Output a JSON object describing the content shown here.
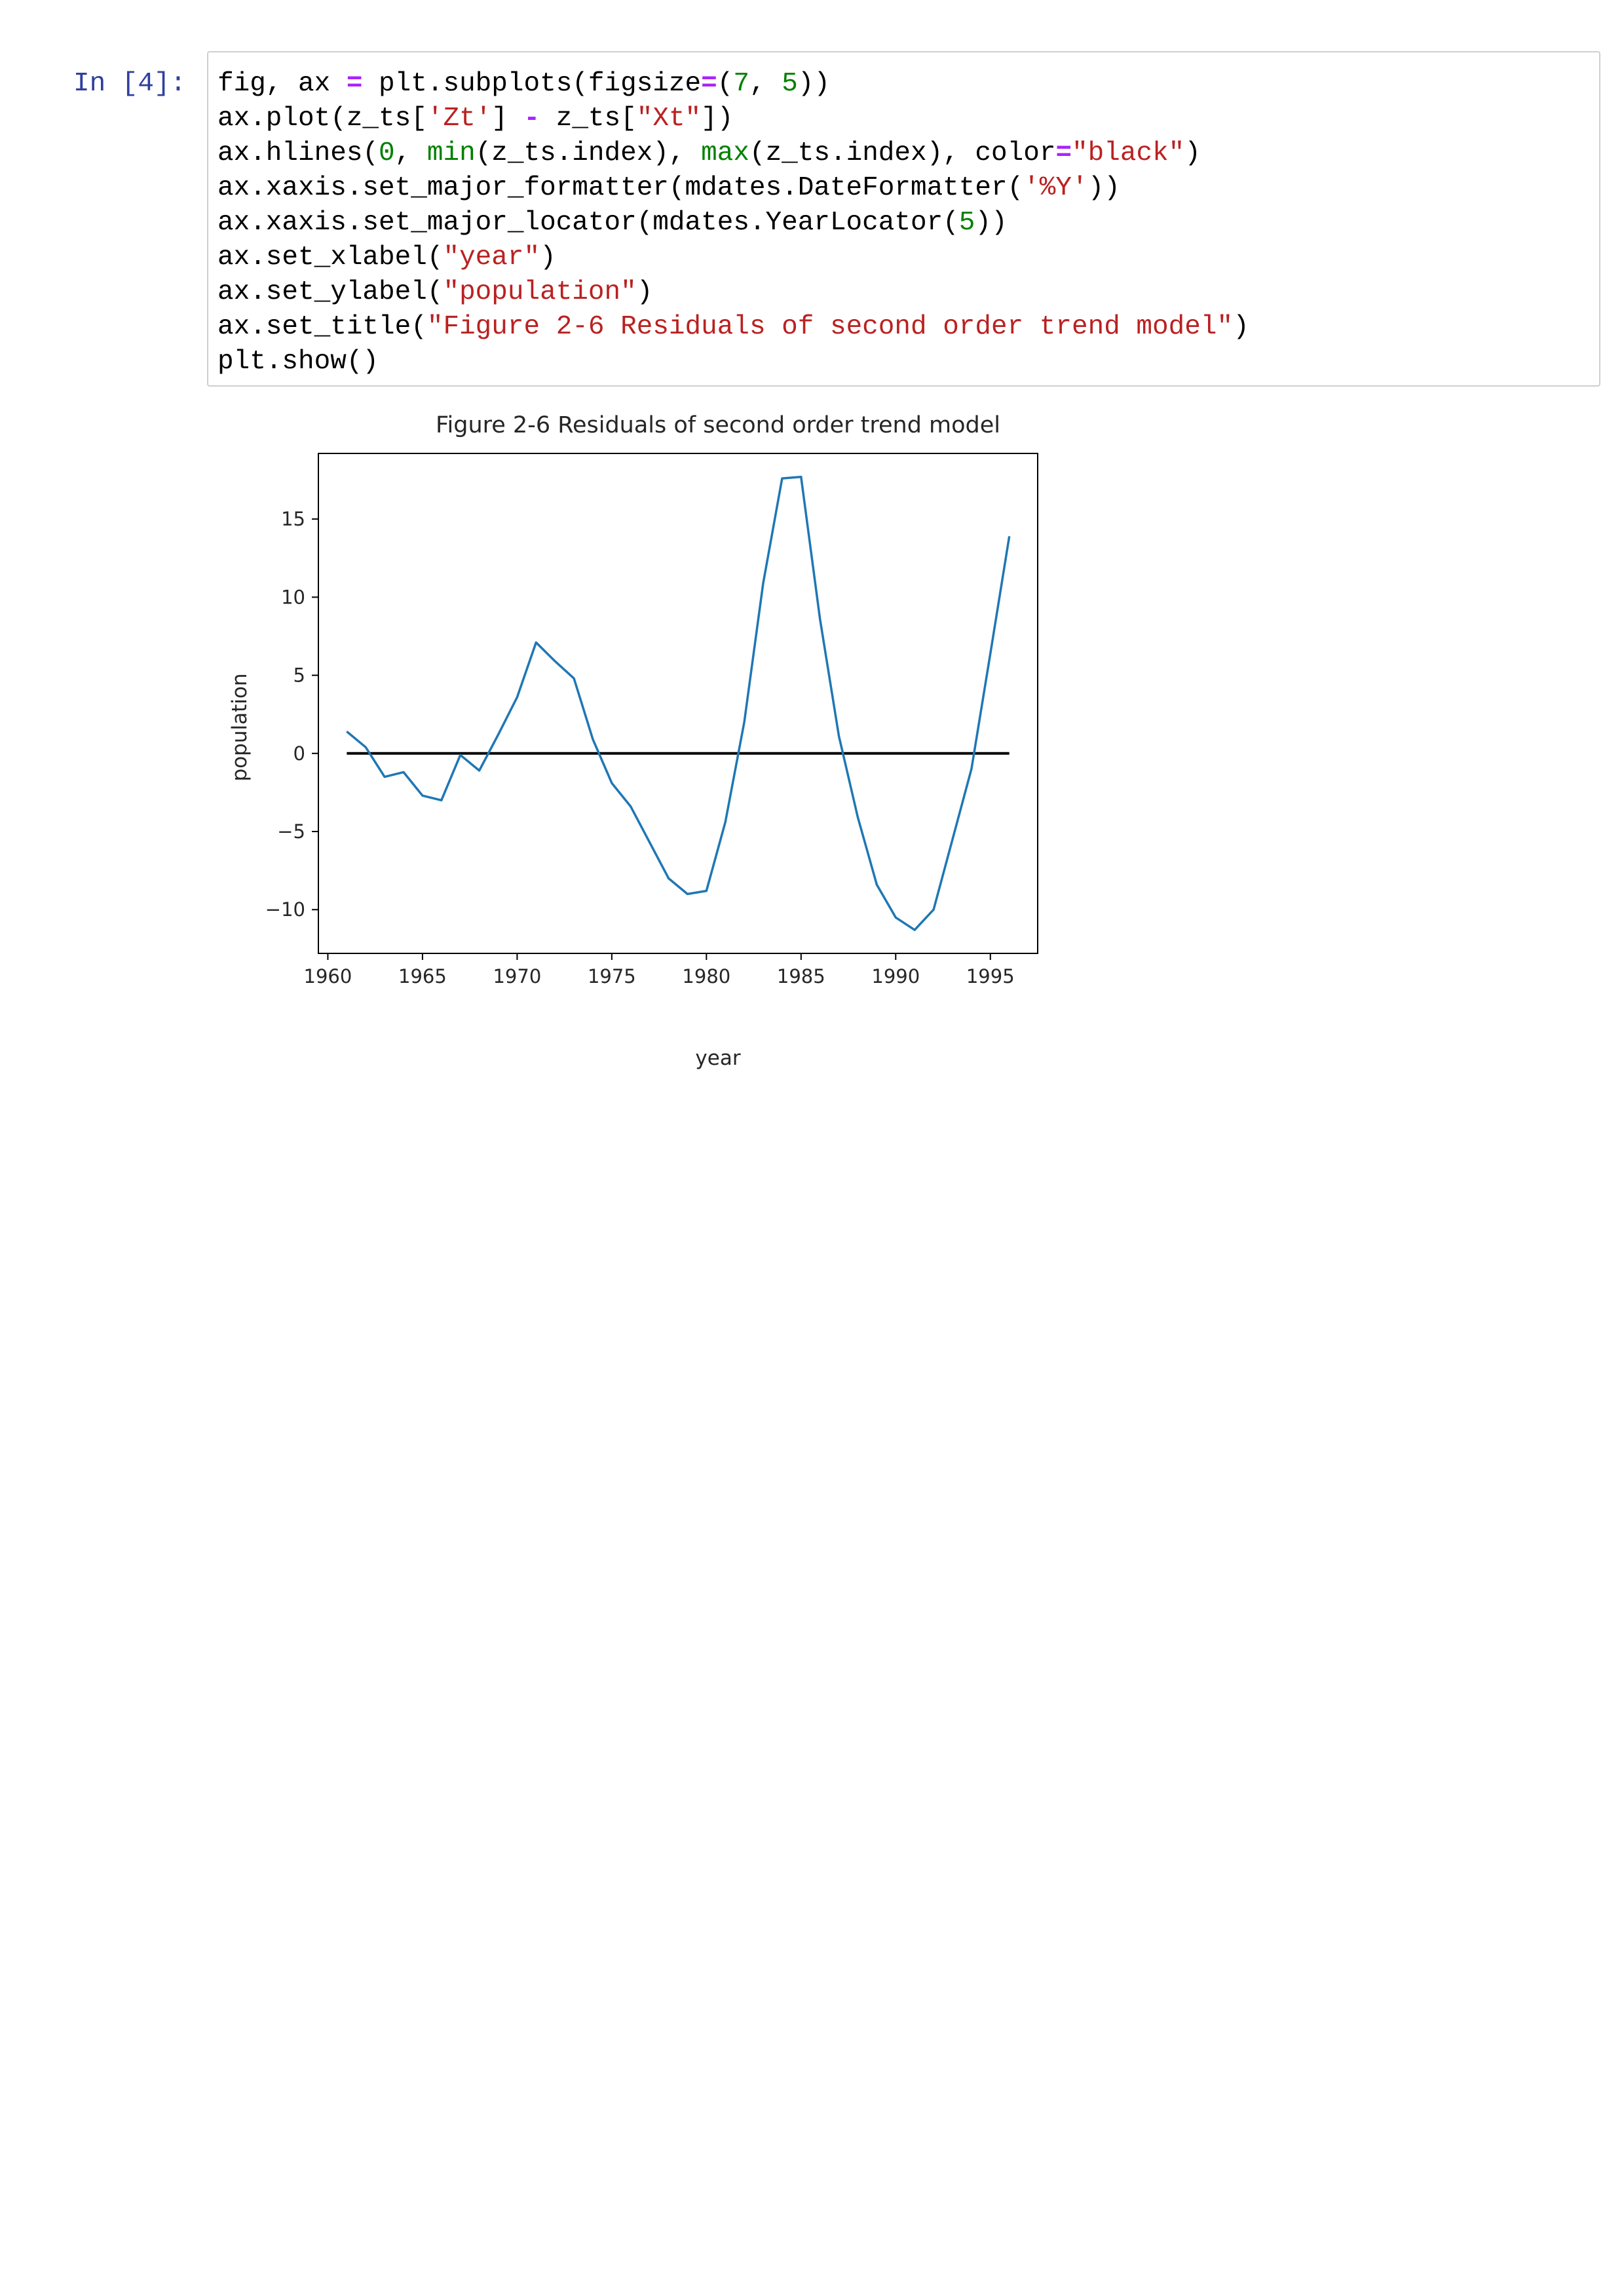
{
  "cell": {
    "prompt": "In [4]:",
    "code_lines": [
      [
        {
          "t": "fig, ax ",
          "c": "k"
        },
        {
          "t": "=",
          "c": "op"
        },
        {
          "t": " plt.subplots(figsize",
          "c": "k"
        },
        {
          "t": "=",
          "c": "op"
        },
        {
          "t": "(",
          "c": "k"
        },
        {
          "t": "7",
          "c": "num"
        },
        {
          "t": ", ",
          "c": "k"
        },
        {
          "t": "5",
          "c": "num"
        },
        {
          "t": "))",
          "c": "k"
        }
      ],
      [
        {
          "t": "ax.plot(z_ts[",
          "c": "k"
        },
        {
          "t": "'Zt'",
          "c": "str"
        },
        {
          "t": "] ",
          "c": "k"
        },
        {
          "t": "-",
          "c": "op"
        },
        {
          "t": " z_ts[",
          "c": "k"
        },
        {
          "t": "\"Xt\"",
          "c": "str"
        },
        {
          "t": "])",
          "c": "k"
        }
      ],
      [
        {
          "t": "ax.hlines(",
          "c": "k"
        },
        {
          "t": "0",
          "c": "num"
        },
        {
          "t": ", ",
          "c": "k"
        },
        {
          "t": "min",
          "c": "bi"
        },
        {
          "t": "(z_ts.index), ",
          "c": "k"
        },
        {
          "t": "max",
          "c": "bi"
        },
        {
          "t": "(z_ts.index), color",
          "c": "k"
        },
        {
          "t": "=",
          "c": "op"
        },
        {
          "t": "\"black\"",
          "c": "str"
        },
        {
          "t": ")",
          "c": "k"
        }
      ],
      [
        {
          "t": "ax.xaxis.set_major_formatter(mdates.DateFormatter(",
          "c": "k"
        },
        {
          "t": "'%Y'",
          "c": "str"
        },
        {
          "t": "))",
          "c": "k"
        }
      ],
      [
        {
          "t": "ax.xaxis.set_major_locator(mdates.YearLocator(",
          "c": "k"
        },
        {
          "t": "5",
          "c": "num"
        },
        {
          "t": "))",
          "c": "k"
        }
      ],
      [
        {
          "t": "ax.set_xlabel(",
          "c": "k"
        },
        {
          "t": "\"year\"",
          "c": "str"
        },
        {
          "t": ")",
          "c": "k"
        }
      ],
      [
        {
          "t": "ax.set_ylabel(",
          "c": "k"
        },
        {
          "t": "\"population\"",
          "c": "str"
        },
        {
          "t": ")",
          "c": "k"
        }
      ],
      [
        {
          "t": "ax.set_title(",
          "c": "k"
        },
        {
          "t": "\"Figure 2-6 Residuals of second order trend model\"",
          "c": "str"
        },
        {
          "t": ")",
          "c": "k"
        }
      ],
      [
        {
          "t": "plt.show()",
          "c": "k"
        }
      ]
    ]
  },
  "colors": {
    "series_line": "#1f77b4",
    "hline": "#000000",
    "prompt": "#303f9f",
    "code_string": "#ba2121",
    "code_number": "#008000",
    "code_operator": "#aa22ff"
  },
  "chart_data": {
    "type": "line",
    "title": "Figure 2-6 Residuals of second order trend model",
    "xlabel": "year",
    "ylabel": "population",
    "xlim": [
      1959.5,
      1997.5
    ],
    "ylim": [
      -12.8,
      19.2
    ],
    "xticks": [
      1960,
      1965,
      1970,
      1975,
      1980,
      1985,
      1990,
      1995
    ],
    "yticks": [
      -10,
      -5,
      0,
      5,
      10,
      15
    ],
    "ytick_labels": [
      "−10",
      "−5",
      "0",
      "5",
      "10",
      "15"
    ],
    "grid": false,
    "hline": {
      "y": 0,
      "xmin": 1961,
      "xmax": 1996,
      "color": "black"
    },
    "series": [
      {
        "x": [
          1961,
          1962,
          1963,
          1964,
          1965,
          1966,
          1967,
          1968,
          1969,
          1970,
          1971,
          1972,
          1973,
          1974,
          1975,
          1976,
          1977,
          1978,
          1979,
          1980,
          1981,
          1982,
          1983,
          1984,
          1985,
          1986,
          1987,
          1988,
          1989,
          1990,
          1991,
          1992,
          1993,
          1994,
          1995,
          1996
        ],
        "values": [
          1.4,
          0.4,
          -1.5,
          -1.2,
          -2.7,
          -3.0,
          -0.1,
          -1.1,
          1.2,
          3.6,
          7.1,
          5.9,
          4.8,
          0.9,
          -1.9,
          -3.4,
          -5.7,
          -8.0,
          -9.0,
          -8.8,
          -4.4,
          2.0,
          10.9,
          17.6,
          17.7,
          8.6,
          1.1,
          -4.1,
          -8.4,
          -10.5,
          -11.3,
          -10.0,
          -5.5,
          -1.0,
          6.4,
          13.9
        ]
      }
    ]
  }
}
